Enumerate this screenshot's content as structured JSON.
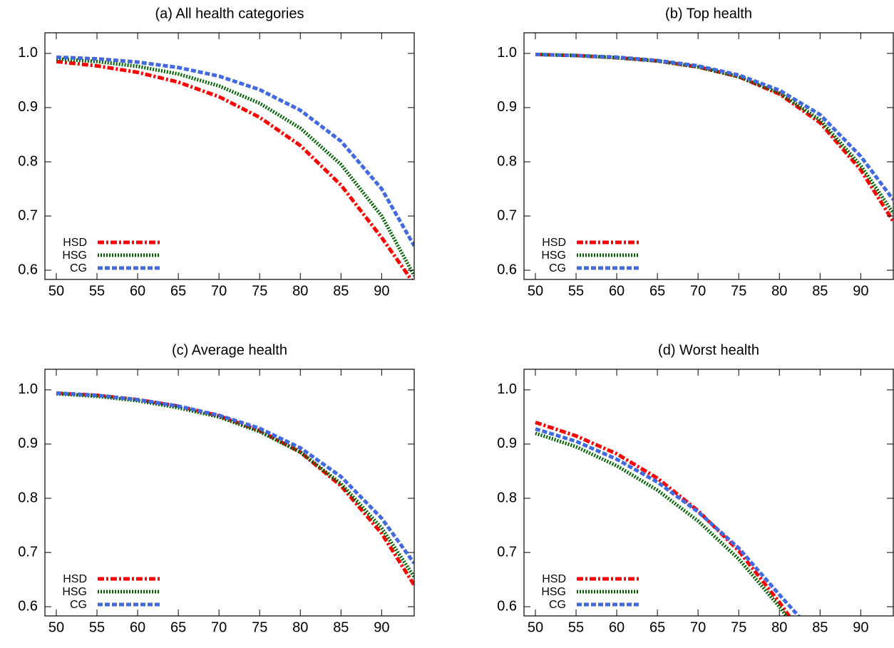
{
  "chart_data": [
    {
      "type": "line",
      "title": "(a) All health categories",
      "x": [
        50,
        55,
        60,
        65,
        70,
        75,
        80,
        85,
        90,
        94
      ],
      "series": [
        {
          "name": "HSD",
          "color": "#ff0000",
          "dash": "dash-dot",
          "values": [
            0.985,
            0.977,
            0.965,
            0.947,
            0.92,
            0.882,
            0.83,
            0.757,
            0.66,
            0.575
          ]
        },
        {
          "name": "HSG",
          "color": "#006400",
          "dash": "dotted",
          "values": [
            0.99,
            0.985,
            0.976,
            0.962,
            0.94,
            0.908,
            0.862,
            0.795,
            0.7,
            0.59
          ]
        },
        {
          "name": "CG",
          "color": "#4169e1",
          "dash": "dashed",
          "values": [
            0.993,
            0.99,
            0.984,
            0.974,
            0.958,
            0.933,
            0.895,
            0.838,
            0.75,
            0.645
          ]
        }
      ],
      "xlim": [
        48.6,
        94
      ],
      "ylim": [
        0.583,
        1.038
      ],
      "xticks": [
        50,
        55,
        60,
        65,
        70,
        75,
        80,
        85,
        90
      ],
      "yticks": [
        0.6,
        0.7,
        0.8,
        0.9,
        {
          "value": 1,
          "label": "1.0"
        }
      ],
      "grid": false,
      "legend": "lower left"
    },
    {
      "type": "line",
      "title": "(b) Top health",
      "x": [
        50,
        55,
        60,
        65,
        70,
        75,
        80,
        85,
        90,
        94
      ],
      "series": [
        {
          "name": "HSD",
          "color": "#ff0000",
          "dash": "dash-dot",
          "values": [
            0.998,
            0.996,
            0.992,
            0.986,
            0.975,
            0.957,
            0.925,
            0.872,
            0.785,
            0.69
          ]
        },
        {
          "name": "HSG",
          "color": "#006400",
          "dash": "dotted",
          "values": [
            0.998,
            0.996,
            0.992,
            0.986,
            0.975,
            0.957,
            0.927,
            0.877,
            0.793,
            0.705
          ]
        },
        {
          "name": "CG",
          "color": "#4169e1",
          "dash": "dashed",
          "values": [
            0.998,
            0.996,
            0.993,
            0.987,
            0.977,
            0.96,
            0.932,
            0.887,
            0.81,
            0.73
          ]
        }
      ],
      "xlim": [
        48.6,
        94
      ],
      "ylim": [
        0.583,
        1.038
      ],
      "xticks": [
        50,
        55,
        60,
        65,
        70,
        75,
        80,
        85,
        90
      ],
      "yticks": [
        0.6,
        0.7,
        0.8,
        0.9,
        {
          "value": 1,
          "label": "1.0"
        }
      ],
      "grid": false,
      "legend": "lower left"
    },
    {
      "type": "line",
      "title": "(c) Average health",
      "x": [
        50,
        55,
        60,
        65,
        70,
        75,
        80,
        85,
        90,
        94
      ],
      "series": [
        {
          "name": "HSD",
          "color": "#ff0000",
          "dash": "dash-dot",
          "values": [
            0.994,
            0.99,
            0.982,
            0.97,
            0.952,
            0.925,
            0.885,
            0.823,
            0.735,
            0.64
          ]
        },
        {
          "name": "HSG",
          "color": "#006400",
          "dash": "dotted",
          "values": [
            0.993,
            0.988,
            0.98,
            0.967,
            0.95,
            0.923,
            0.885,
            0.827,
            0.745,
            0.655
          ]
        },
        {
          "name": "CG",
          "color": "#4169e1",
          "dash": "dashed",
          "values": [
            0.994,
            0.99,
            0.982,
            0.97,
            0.953,
            0.929,
            0.893,
            0.84,
            0.763,
            0.68
          ]
        }
      ],
      "xlim": [
        48.6,
        94
      ],
      "ylim": [
        0.583,
        1.038
      ],
      "xticks": [
        50,
        55,
        60,
        65,
        70,
        75,
        80,
        85,
        90
      ],
      "yticks": [
        0.6,
        0.7,
        0.8,
        0.9,
        {
          "value": 1,
          "label": "1.0"
        }
      ],
      "grid": false,
      "legend": "lower left"
    },
    {
      "type": "line",
      "title": "(d) Worst health",
      "x": [
        50,
        55,
        60,
        65,
        70,
        75,
        80,
        83
      ],
      "series": [
        {
          "name": "HSD",
          "color": "#ff0000",
          "dash": "dash-dot",
          "values": [
            0.94,
            0.915,
            0.882,
            0.837,
            0.777,
            0.703,
            0.608,
            0.545
          ]
        },
        {
          "name": "HSG",
          "color": "#006400",
          "dash": "dotted",
          "values": [
            0.92,
            0.895,
            0.86,
            0.815,
            0.758,
            0.688,
            0.6,
            0.54
          ]
        },
        {
          "name": "CG",
          "color": "#4169e1",
          "dash": "dashed",
          "values": [
            0.928,
            0.905,
            0.872,
            0.83,
            0.775,
            0.708,
            0.622,
            0.572
          ]
        }
      ],
      "xlim": [
        48.6,
        94
      ],
      "ylim": [
        0.583,
        1.038
      ],
      "xticks": [
        50,
        55,
        60,
        65,
        70,
        75,
        80,
        85,
        90
      ],
      "yticks": [
        0.6,
        0.7,
        0.8,
        0.9,
        {
          "value": 1,
          "label": "1.0"
        }
      ],
      "grid": false,
      "legend": "lower left"
    }
  ]
}
